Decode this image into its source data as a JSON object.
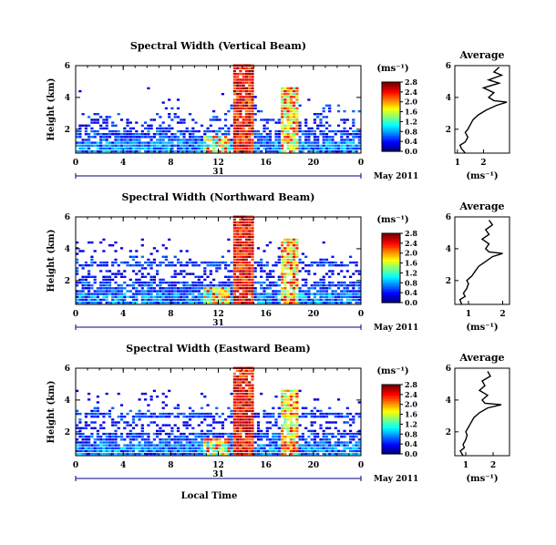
{
  "chart_data": [
    {
      "type": "heatmap",
      "title": "Spectral Width (Vertical Beam)",
      "ylabel": "Height (km)",
      "x_ticks": [
        "0",
        "4",
        "8",
        "12",
        "16",
        "20",
        "0"
      ],
      "y_ticks": [
        "2",
        "4",
        "6"
      ],
      "day_label": "31",
      "date_label": "May 2011",
      "xlim_hours": [
        0,
        24
      ],
      "ylim_km": [
        0.5,
        6
      ],
      "colorbar": {
        "unit": "(ms⁻¹)",
        "ticks": [
          "0.0",
          "0.4",
          "0.8",
          "1.2",
          "1.6",
          "2.0",
          "2.4",
          "2.8"
        ],
        "range": [
          0,
          2.8
        ]
      },
      "average": {
        "title": "Average",
        "xlabel": "(ms⁻¹)",
        "x_ticks": [
          "1",
          "2"
        ],
        "y_ticks": [
          "2",
          "4",
          "6"
        ],
        "xlim": [
          0.9,
          3.0
        ],
        "profile": [
          [
            0.5,
            1.3
          ],
          [
            0.8,
            1.15
          ],
          [
            1.0,
            1.1
          ],
          [
            1.2,
            1.3
          ],
          [
            1.5,
            1.4
          ],
          [
            1.8,
            1.3
          ],
          [
            2.0,
            1.4
          ],
          [
            2.3,
            1.5
          ],
          [
            2.6,
            1.6
          ],
          [
            2.9,
            1.8
          ],
          [
            3.2,
            2.1
          ],
          [
            3.5,
            2.5
          ],
          [
            3.7,
            2.9
          ],
          [
            3.8,
            2.4
          ],
          [
            4.0,
            2.2
          ],
          [
            4.3,
            2.4
          ],
          [
            4.6,
            2.0
          ],
          [
            4.9,
            2.6
          ],
          [
            5.1,
            2.2
          ],
          [
            5.4,
            2.7
          ],
          [
            5.6,
            2.4
          ],
          [
            5.9,
            2.6
          ]
        ]
      }
    },
    {
      "type": "heatmap",
      "title": "Spectral Width (Northward Beam)",
      "ylabel": "Height (km)",
      "x_ticks": [
        "0",
        "4",
        "8",
        "12",
        "16",
        "20",
        "0"
      ],
      "y_ticks": [
        "2",
        "4",
        "6"
      ],
      "day_label": "31",
      "date_label": "May 2011",
      "xlim_hours": [
        0,
        24
      ],
      "ylim_km": [
        0.5,
        6
      ],
      "colorbar": {
        "unit": "(ms⁻¹)",
        "ticks": [
          "0.0",
          "0.4",
          "0.8",
          "1.2",
          "1.6",
          "2.0",
          "2.4",
          "2.8"
        ],
        "range": [
          0,
          2.8
        ]
      },
      "average": {
        "title": "Average",
        "xlabel": "(ms⁻¹)",
        "x_ticks": [
          "1",
          "2"
        ],
        "y_ticks": [
          "2",
          "4",
          "6"
        ],
        "xlim": [
          0.6,
          2.2
        ],
        "profile": [
          [
            0.5,
            0.8
          ],
          [
            0.8,
            0.75
          ],
          [
            1.0,
            0.9
          ],
          [
            1.2,
            0.85
          ],
          [
            1.5,
            0.95
          ],
          [
            1.8,
            1.0
          ],
          [
            2.0,
            0.95
          ],
          [
            2.3,
            1.1
          ],
          [
            2.6,
            1.2
          ],
          [
            2.9,
            1.3
          ],
          [
            3.2,
            1.5
          ],
          [
            3.5,
            1.7
          ],
          [
            3.7,
            2.0
          ],
          [
            3.8,
            1.6
          ],
          [
            4.0,
            1.5
          ],
          [
            4.3,
            1.6
          ],
          [
            4.6,
            1.4
          ],
          [
            4.9,
            1.6
          ],
          [
            5.2,
            1.5
          ],
          [
            5.5,
            1.7
          ],
          [
            5.8,
            1.6
          ]
        ]
      }
    },
    {
      "type": "heatmap",
      "title": "Spectral Width (Eastward Beam)",
      "ylabel": "Height (km)",
      "x_ticks": [
        "0",
        "4",
        "8",
        "12",
        "16",
        "20",
        "0"
      ],
      "y_ticks": [
        "2",
        "4",
        "6"
      ],
      "day_label": "31",
      "date_label": "May 2011",
      "xlabel": "Local Time",
      "xlim_hours": [
        0,
        24
      ],
      "ylim_km": [
        0.5,
        6
      ],
      "colorbar": {
        "unit": "(ms⁻¹)",
        "ticks": [
          "0.0",
          "0.4",
          "0.8",
          "1.2",
          "1.6",
          "2.0",
          "2.4",
          "2.8"
        ],
        "range": [
          0,
          2.8
        ]
      },
      "average": {
        "title": "Average",
        "xlabel": "(ms⁻¹)",
        "x_ticks": [
          "1",
          "2"
        ],
        "y_ticks": [
          "2",
          "4",
          "6"
        ],
        "xlim": [
          0.6,
          2.6
        ],
        "profile": [
          [
            0.5,
            0.9
          ],
          [
            0.8,
            0.8
          ],
          [
            1.0,
            0.95
          ],
          [
            1.2,
            0.9
          ],
          [
            1.5,
            1.0
          ],
          [
            1.8,
            1.05
          ],
          [
            2.0,
            1.0
          ],
          [
            2.3,
            1.1
          ],
          [
            2.6,
            1.2
          ],
          [
            2.9,
            1.3
          ],
          [
            3.2,
            1.5
          ],
          [
            3.5,
            1.8
          ],
          [
            3.7,
            2.3
          ],
          [
            3.8,
            1.7
          ],
          [
            4.0,
            1.6
          ],
          [
            4.3,
            1.8
          ],
          [
            4.6,
            1.5
          ],
          [
            4.9,
            1.7
          ],
          [
            5.2,
            1.6
          ],
          [
            5.5,
            1.9
          ],
          [
            5.8,
            1.8
          ]
        ]
      }
    }
  ]
}
